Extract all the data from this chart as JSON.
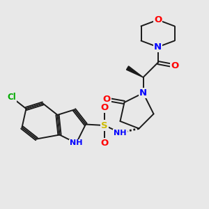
{
  "bg_color": "#e8e8e8",
  "bond_color": "#1a1a1a",
  "bond_width": 1.4,
  "atom_colors": {
    "O": "#ff0000",
    "N": "#0000ff",
    "S": "#ccbb00",
    "Cl": "#00aa00",
    "C": "#1a1a1a",
    "H": "#1a1a1a"
  },
  "font_size": 8.5
}
